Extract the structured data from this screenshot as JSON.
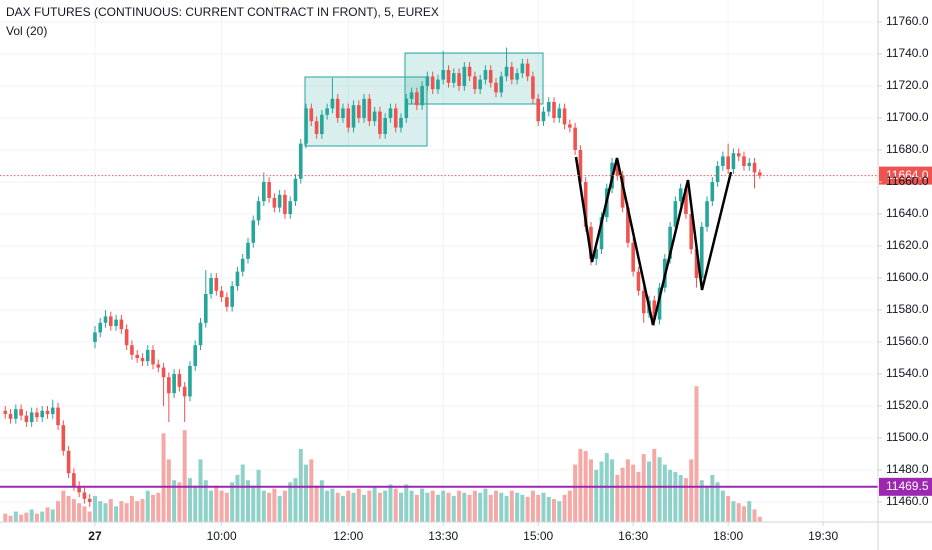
{
  "chart_data": {
    "type": "candlestick",
    "title": "DAX FUTURES (CONTINUOUS: CURRENT CONTRACT IN FRONT), 5, EUREX",
    "volume_label": "Vol (20)",
    "up_color": "#26a69a",
    "down_color": "#ef5350",
    "volume_up_color": "#8ed1c8",
    "volume_down_color": "#f5a9a7",
    "grid": true,
    "xlim": [
      390,
      1222
    ],
    "xticks": [
      {
        "value": 480,
        "label": "27"
      },
      {
        "value": 600,
        "label": "10:00"
      },
      {
        "value": 720,
        "label": "12:00"
      },
      {
        "value": 810,
        "label": "13:30"
      },
      {
        "value": 900,
        "label": "15:00"
      },
      {
        "value": 990,
        "label": "16:30"
      },
      {
        "value": 1080,
        "label": "18:00"
      },
      {
        "value": 1170,
        "label": "19:30"
      }
    ],
    "ylim": [
      11447.5,
      11773.75
    ],
    "yticks": [
      {
        "value": 11460,
        "label": "11460.0"
      },
      {
        "value": 11480,
        "label": "11480.0"
      },
      {
        "value": 11500,
        "label": "11500.0"
      },
      {
        "value": 11520,
        "label": "11520.0"
      },
      {
        "value": 11540,
        "label": "11540.0"
      },
      {
        "value": 11560,
        "label": "11560.0"
      },
      {
        "value": 11580,
        "label": "11580.0"
      },
      {
        "value": 11600,
        "label": "11600.0"
      },
      {
        "value": 11620,
        "label": "11620.0"
      },
      {
        "value": 11640,
        "label": "11640.0"
      },
      {
        "value": 11660,
        "label": "11660.0"
      },
      {
        "value": 11680,
        "label": "11680.0"
      },
      {
        "value": 11700,
        "label": "11700.0"
      },
      {
        "value": 11720,
        "label": "11720.0"
      },
      {
        "value": 11740,
        "label": "11740.0"
      },
      {
        "value": 11760,
        "label": "11760.0"
      }
    ],
    "volume_ylim": [
      0,
      500
    ],
    "price_lines": [
      {
        "value": 11664,
        "label": "11664.0",
        "color": "#ef5350",
        "style": "dotted"
      },
      {
        "value": 11469.5,
        "label": "11469.5",
        "color": "#9c27b0",
        "style": "solid"
      }
    ],
    "x": [
      395,
      400,
      405,
      410,
      415,
      420,
      425,
      430,
      435,
      440,
      445,
      450,
      455,
      460,
      465,
      470,
      475,
      480,
      485,
      490,
      495,
      500,
      505,
      510,
      515,
      520,
      525,
      530,
      535,
      540,
      545,
      550,
      555,
      560,
      565,
      570,
      575,
      580,
      585,
      590,
      595,
      600,
      605,
      610,
      615,
      620,
      625,
      630,
      635,
      640,
      645,
      650,
      655,
      660,
      665,
      670,
      675,
      680,
      685,
      690,
      695,
      700,
      705,
      710,
      715,
      720,
      725,
      730,
      735,
      740,
      745,
      750,
      755,
      760,
      765,
      770,
      775,
      780,
      785,
      790,
      795,
      800,
      805,
      810,
      815,
      820,
      825,
      830,
      835,
      840,
      845,
      850,
      855,
      860,
      865,
      870,
      875,
      880,
      885,
      890,
      895,
      900,
      905,
      910,
      915,
      920,
      925,
      930,
      935,
      940,
      945,
      950,
      955,
      960,
      965,
      970,
      975,
      980,
      985,
      990,
      995,
      1000,
      1005,
      1010,
      1015,
      1020,
      1025,
      1030,
      1035,
      1040,
      1045,
      1050,
      1055,
      1060,
      1065,
      1070,
      1075,
      1080,
      1085,
      1090,
      1095,
      1100,
      1105,
      1110
    ],
    "open": [
      11517,
      11515,
      11512,
      11518,
      11514,
      11510,
      11516,
      11513,
      11517,
      11515,
      11519,
      11508,
      11492,
      11478,
      11470,
      11466,
      11462,
      11560,
      11566,
      11572,
      11576,
      11570,
      11574,
      11568,
      11558,
      11552,
      11550,
      11548,
      11555,
      11546,
      11544,
      11538,
      11528,
      11540,
      11532,
      11526,
      11545,
      11558,
      11572,
      11590,
      11600,
      11592,
      11588,
      11582,
      11595,
      11604,
      11612,
      11622,
      11636,
      11648,
      11660,
      11650,
      11644,
      11652,
      11640,
      11648,
      11662,
      11684,
      11706,
      11698,
      11690,
      11702,
      11706,
      11712,
      11700,
      11706,
      11694,
      11708,
      11700,
      11712,
      11698,
      11704,
      11690,
      11700,
      11706,
      11694,
      11700,
      11712,
      11716,
      11708,
      11720,
      11726,
      11718,
      11724,
      11730,
      11722,
      11728,
      11720,
      11732,
      11726,
      11718,
      11724,
      11730,
      11722,
      11716,
      11726,
      11732,
      11724,
      11728,
      11734,
      11726,
      11712,
      11698,
      11704,
      11710,
      11700,
      11706,
      11696,
      11694,
      11680,
      11660,
      11632,
      11612,
      11618,
      11638,
      11656,
      11672,
      11664,
      11644,
      11622,
      11604,
      11592,
      11578,
      11586,
      11574,
      11594,
      11612,
      11632,
      11648,
      11656,
      11640,
      11618,
      11600,
      11632,
      11648,
      11660,
      11670,
      11676,
      11668,
      11678,
      11676,
      11670,
      11672,
      11666
    ],
    "high": [
      11520,
      11518,
      11521,
      11521,
      11517,
      11519,
      11519,
      11520,
      11520,
      11524,
      11522,
      11511,
      11495,
      11481,
      11473,
      11469,
      11465,
      11570,
      11575,
      11580,
      11579,
      11577,
      11577,
      11571,
      11561,
      11555,
      11553,
      11558,
      11558,
      11549,
      11547,
      11541,
      11543,
      11543,
      11535,
      11548,
      11561,
      11575,
      11605,
      11603,
      11603,
      11595,
      11591,
      11598,
      11607,
      11615,
      11625,
      11639,
      11651,
      11666,
      11663,
      11653,
      11655,
      11655,
      11651,
      11665,
      11687,
      11709,
      11709,
      11701,
      11705,
      11709,
      11725,
      11715,
      11709,
      11709,
      11711,
      11711,
      11715,
      11715,
      11707,
      11707,
      11703,
      11709,
      11709,
      11703,
      11715,
      11719,
      11719,
      11723,
      11729,
      11729,
      11727,
      11742,
      11733,
      11731,
      11731,
      11735,
      11735,
      11729,
      11727,
      11733,
      11733,
      11725,
      11729,
      11744,
      11735,
      11731,
      11737,
      11737,
      11729,
      11715,
      11707,
      11713,
      11713,
      11709,
      11709,
      11699,
      11697,
      11683,
      11663,
      11635,
      11621,
      11641,
      11659,
      11675,
      11675,
      11667,
      11647,
      11625,
      11607,
      11595,
      11589,
      11589,
      11597,
      11615,
      11635,
      11651,
      11659,
      11659,
      11643,
      11621,
      11635,
      11651,
      11663,
      11673,
      11679,
      11684,
      11681,
      11681,
      11679,
      11675,
      11675,
      11668
    ],
    "low": [
      11512,
      11509,
      11509,
      11511,
      11507,
      11507,
      11510,
      11510,
      11512,
      11512,
      11505,
      11489,
      11475,
      11467,
      11463,
      11459,
      11457,
      11556,
      11563,
      11569,
      11567,
      11567,
      11565,
      11555,
      11549,
      11547,
      11545,
      11545,
      11543,
      11541,
      11520,
      11510,
      11525,
      11529,
      11510,
      11523,
      11542,
      11555,
      11569,
      11587,
      11589,
      11585,
      11579,
      11579,
      11592,
      11601,
      11609,
      11619,
      11633,
      11645,
      11647,
      11641,
      11641,
      11637,
      11637,
      11645,
      11659,
      11681,
      11695,
      11687,
      11687,
      11699,
      11703,
      11697,
      11697,
      11691,
      11691,
      11697,
      11697,
      11695,
      11695,
      11687,
      11687,
      11697,
      11691,
      11691,
      11697,
      11709,
      11705,
      11705,
      11717,
      11715,
      11715,
      11721,
      11719,
      11719,
      11717,
      11717,
      11723,
      11715,
      11715,
      11721,
      11719,
      11713,
      11713,
      11723,
      11721,
      11721,
      11725,
      11723,
      11709,
      11695,
      11695,
      11701,
      11697,
      11697,
      11693,
      11691,
      11677,
      11657,
      11629,
      11608,
      11608,
      11615,
      11635,
      11653,
      11661,
      11641,
      11619,
      11601,
      11589,
      11572,
      11575,
      11570,
      11571,
      11591,
      11609,
      11629,
      11645,
      11637,
      11615,
      11594,
      11597,
      11629,
      11645,
      11657,
      11667,
      11665,
      11665,
      11673,
      11667,
      11667,
      11656,
      11662
    ],
    "close": [
      11515,
      11512,
      11518,
      11514,
      11510,
      11516,
      11513,
      11517,
      11515,
      11519,
      11508,
      11492,
      11478,
      11470,
      11466,
      11462,
      11460,
      11566,
      11572,
      11576,
      11570,
      11574,
      11568,
      11558,
      11552,
      11550,
      11548,
      11555,
      11546,
      11544,
      11538,
      11528,
      11540,
      11532,
      11526,
      11545,
      11558,
      11572,
      11590,
      11600,
      11592,
      11588,
      11582,
      11595,
      11604,
      11612,
      11622,
      11636,
      11648,
      11660,
      11650,
      11644,
      11652,
      11640,
      11648,
      11662,
      11684,
      11706,
      11698,
      11690,
      11702,
      11706,
      11712,
      11700,
      11706,
      11694,
      11708,
      11700,
      11712,
      11698,
      11704,
      11690,
      11700,
      11706,
      11694,
      11700,
      11712,
      11716,
      11708,
      11720,
      11726,
      11718,
      11724,
      11730,
      11722,
      11728,
      11720,
      11732,
      11726,
      11718,
      11724,
      11730,
      11722,
      11716,
      11726,
      11732,
      11724,
      11728,
      11734,
      11726,
      11712,
      11698,
      11704,
      11710,
      11700,
      11706,
      11696,
      11694,
      11680,
      11660,
      11632,
      11612,
      11618,
      11638,
      11656,
      11672,
      11664,
      11644,
      11622,
      11604,
      11592,
      11578,
      11586,
      11574,
      11594,
      11612,
      11632,
      11648,
      11656,
      11640,
      11618,
      11600,
      11632,
      11648,
      11660,
      11670,
      11676,
      11668,
      11678,
      11676,
      11670,
      11672,
      11666,
      11664
    ],
    "volume": [
      8,
      6,
      10,
      7,
      9,
      12,
      8,
      10,
      14,
      12,
      20,
      30,
      25,
      22,
      18,
      15,
      10,
      25,
      20,
      18,
      22,
      15,
      20,
      18,
      25,
      20,
      22,
      30,
      26,
      28,
      85,
      60,
      40,
      38,
      88,
      42,
      35,
      60,
      40,
      30,
      35,
      30,
      28,
      38,
      45,
      55,
      40,
      35,
      50,
      30,
      28,
      32,
      25,
      30,
      38,
      42,
      70,
      55,
      60,
      35,
      40,
      30,
      32,
      28,
      25,
      30,
      28,
      32,
      26,
      30,
      34,
      28,
      30,
      36,
      32,
      28,
      36,
      30,
      26,
      32,
      28,
      30,
      26,
      30,
      28,
      25,
      30,
      28,
      26,
      30,
      28,
      32,
      26,
      30,
      28,
      25,
      30,
      28,
      26,
      24,
      30,
      26,
      28,
      24,
      22,
      20,
      26,
      30,
      55,
      70,
      68,
      60,
      50,
      58,
      66,
      60,
      45,
      52,
      60,
      55,
      48,
      65,
      58,
      70,
      62,
      55,
      50,
      48,
      45,
      42,
      60,
      130,
      40,
      35,
      45,
      38,
      30,
      25,
      20,
      18,
      15,
      20,
      12,
      5
    ]
  }
}
